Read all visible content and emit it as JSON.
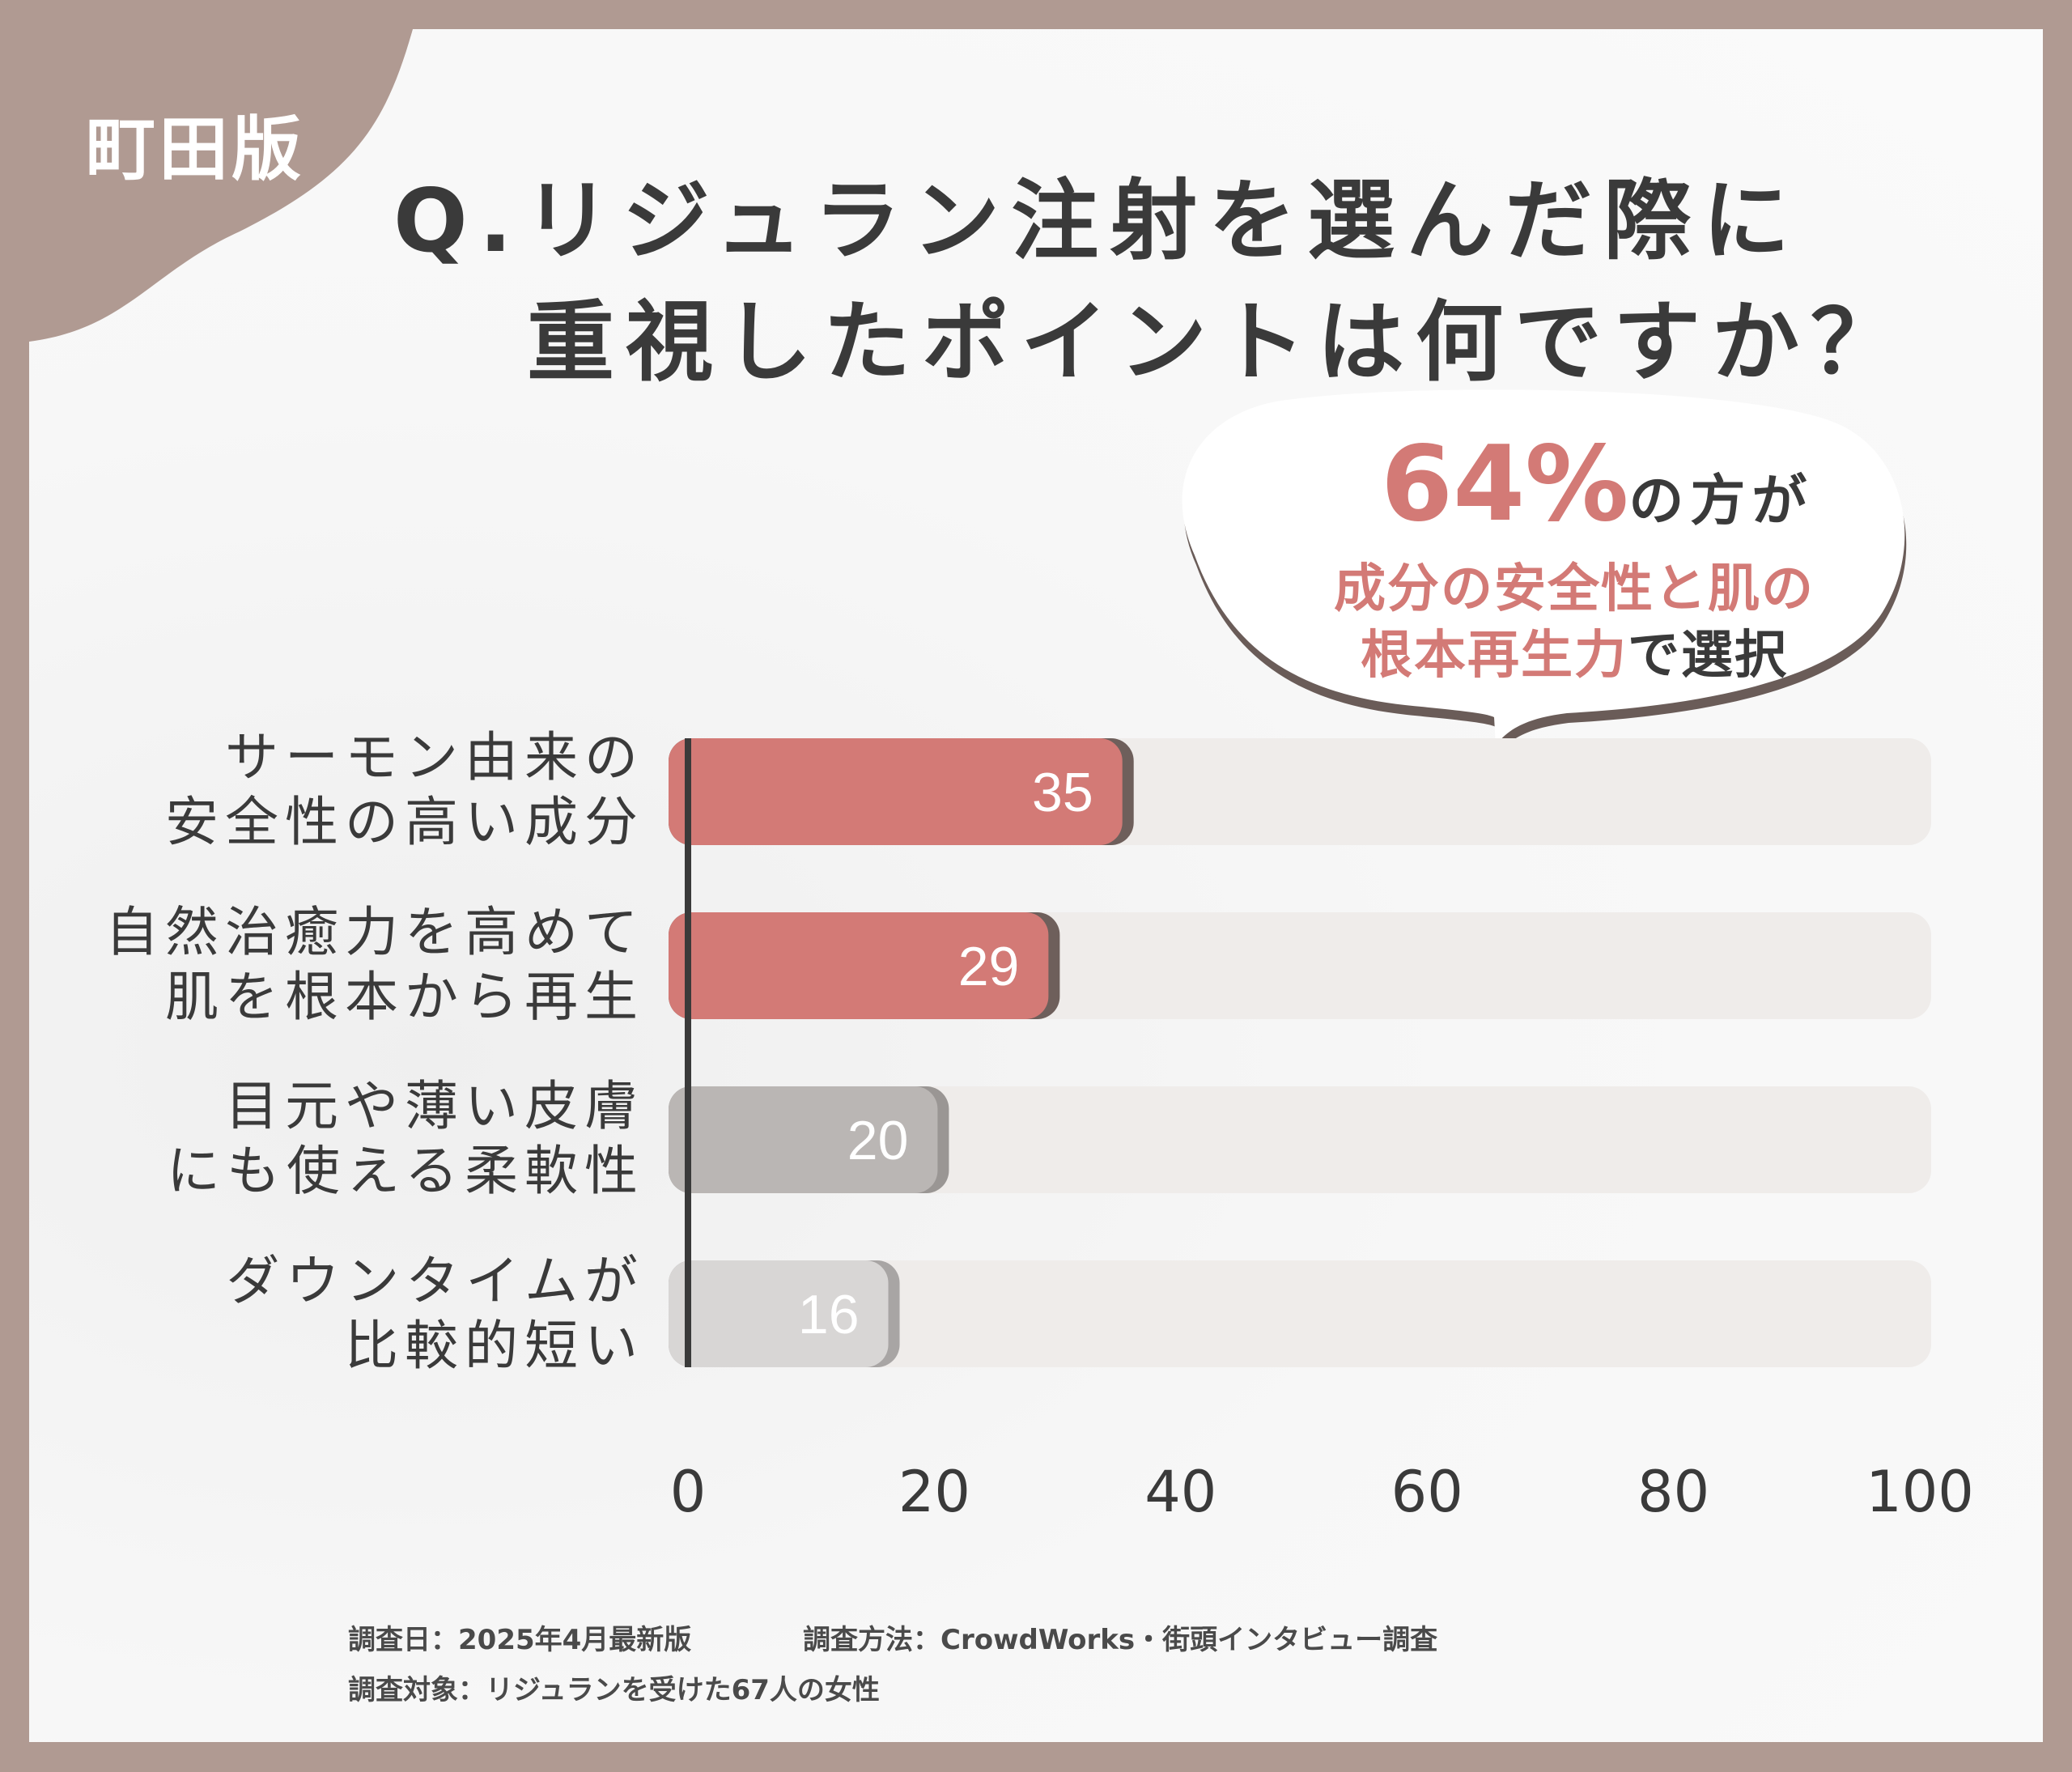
{
  "region_label": "町田版",
  "question": {
    "line1": "Q.リジュラン注射を選んだ際に",
    "line2": "重視したポイントは何ですか？"
  },
  "callout": {
    "percent": "64%",
    "percent_suffix": "の方が",
    "highlight_line1": "成分の安全性と肌の",
    "highlight_line2": "根本再生力",
    "tail": "で選択"
  },
  "categories": [
    {
      "line1": "サーモン由来の",
      "line2": "安全性の高い成分"
    },
    {
      "line1": "自然治癒力を高めて",
      "line2": "肌を根本から再生"
    },
    {
      "line1": "目元や薄い皮膚",
      "line2": "にも使える柔軟性"
    },
    {
      "line1": "ダウンタイムが",
      "line2": "比較的短い"
    }
  ],
  "chart_data": {
    "type": "bar",
    "orientation": "horizontal",
    "categories": [
      "サーモン由来の安全性の高い成分",
      "自然治癒力を高めて肌を根本から再生",
      "目元や薄い皮膚にも使える柔軟性",
      "ダウンタイムが比較的短い"
    ],
    "values": [
      35,
      29,
      20,
      16
    ],
    "xlim": [
      0,
      100
    ],
    "xticks": [
      "0",
      "20",
      "40",
      "60",
      "80",
      "100"
    ],
    "grid": false,
    "colors": [
      "#d37a76",
      "#d37a76",
      "#bab6b4",
      "#d8d6d5"
    ],
    "shadow_colors": [
      "#6e5f5b",
      "#6e5f5b",
      "#9a9694",
      "#a8a5a4"
    ],
    "track_color": "#efecea"
  },
  "footer": {
    "date": "調査日：2025年4月最新版",
    "method": "調査方法：CrowdWorks・街頭インタビュー調査",
    "target": "調査対象：リジュランを受けた67人の女性"
  }
}
